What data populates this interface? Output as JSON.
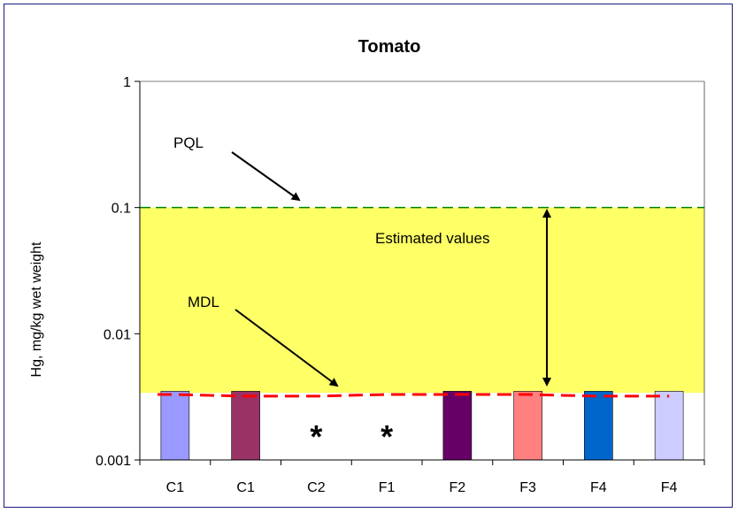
{
  "chart_data": {
    "type": "bar",
    "title": "Tomato",
    "ylabel": "Hg, mg/kg wet weight",
    "xlabel": "",
    "yscale": "log",
    "ylim": [
      0.001,
      1
    ],
    "yticks": [
      0.001,
      0.01,
      0.1,
      1
    ],
    "ytick_labels": [
      "0.001",
      "0.01",
      "0.1",
      "1"
    ],
    "categories": [
      "C1",
      "C1",
      "C2",
      "F1",
      "F2",
      "F3",
      "F4",
      "F4"
    ],
    "values": [
      0.0035,
      0.0035,
      null,
      null,
      0.0035,
      0.0035,
      0.0035,
      0.0035
    ],
    "bar_colors": [
      "#9999ff",
      "#993366",
      null,
      null,
      "#660066",
      "#ff8080",
      "#0066cc",
      "#ccccff"
    ],
    "not_detected_marker": "*",
    "pql": 0.1,
    "mdl_values": [
      0.0033,
      0.0032,
      0.0032,
      0.0033,
      0.0033,
      0.0033,
      0.0032,
      0.0032
    ],
    "estimated_band": [
      0.0034,
      0.1
    ],
    "band_color": "#ffff66",
    "pql_line_color": "#008000",
    "mdl_line_color": "#ff0000",
    "annotations": {
      "pql_label": "PQL",
      "mdl_label": "MDL",
      "estimated_label": "Estimated values"
    },
    "grid": false,
    "legend": "none"
  }
}
